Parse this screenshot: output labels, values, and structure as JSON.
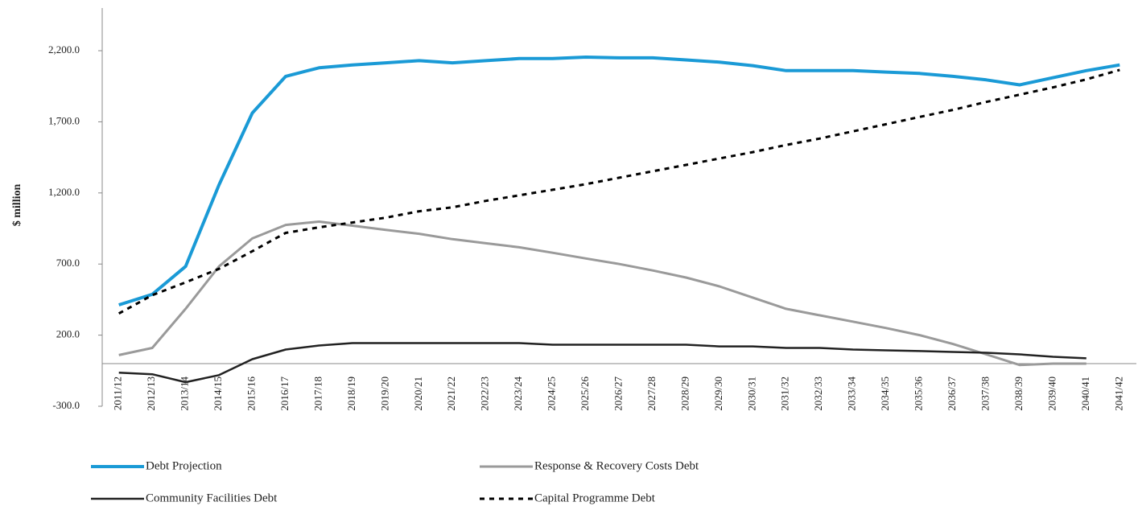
{
  "chart_data": {
    "type": "line",
    "y_label": "$ million",
    "categories": [
      "2011/12",
      "2012/13",
      "2013/14",
      "2014/15",
      "2015/16",
      "2016/17",
      "2017/18",
      "2018/19",
      "2019/20",
      "2020/21",
      "2021/22",
      "2022/23",
      "2023/24",
      "2024/25",
      "2025/26",
      "2026/27",
      "2027/28",
      "2028/29",
      "2029/30",
      "2030/31",
      "2031/32",
      "2032/33",
      "2033/34",
      "2034/35",
      "2035/36",
      "2036/37",
      "2037/38",
      "2038/39",
      "2039/40",
      "2040/41",
      "2041/42"
    ],
    "series": [
      {
        "name": "Debt Projection",
        "color": "#1a9ad6",
        "dash": false,
        "values": [
          413,
          487,
          683,
          1256,
          1762,
          2020,
          2080,
          2100,
          2115,
          2130,
          2115,
          2130,
          2145,
          2145,
          2155,
          2150,
          2150,
          2135,
          2120,
          2095,
          2060,
          2060,
          2060,
          2050,
          2040,
          2020,
          1995,
          1960,
          2010,
          2060,
          2100
        ]
      },
      {
        "name": "Response & Recovery Costs Debt",
        "color": "#9a9a9a",
        "dash": false,
        "values": [
          60,
          110,
          385,
          683,
          880,
          975,
          998,
          970,
          940,
          913,
          875,
          846,
          818,
          779,
          739,
          700,
          655,
          605,
          543,
          464,
          385,
          340,
          295,
          250,
          200,
          138,
          65,
          -10,
          0,
          0,
          null
        ]
      },
      {
        "name": "Community Facilities Debt",
        "color": "#222222",
        "dash": false,
        "values": [
          -64,
          -75,
          -131,
          -81,
          31,
          99,
          127,
          144,
          144,
          144,
          144,
          144,
          144,
          133,
          133,
          133,
          133,
          133,
          121,
          121,
          110,
          110,
          99,
          93,
          88,
          82,
          76,
          65,
          48,
          37,
          null
        ]
      },
      {
        "name": "Capital Programme Debt",
        "color": "#000000",
        "dash": true,
        "values": [
          352,
          481,
          571,
          666,
          790,
          919,
          958,
          992,
          1026,
          1071,
          1099,
          1144,
          1183,
          1222,
          1262,
          1307,
          1352,
          1397,
          1442,
          1487,
          1537,
          1582,
          1633,
          1683,
          1734,
          1784,
          1840,
          1891,
          1942,
          1998,
          2065
        ]
      }
    ],
    "ylim": [
      -300,
      2500
    ],
    "yticks": [
      {
        "value": -300,
        "label": "-300.0"
      },
      {
        "value": 200,
        "label": "200.0"
      },
      {
        "value": 700,
        "label": "700.0"
      },
      {
        "value": 1200,
        "label": "1,200.0"
      },
      {
        "value": 1700,
        "label": "1,700.0"
      },
      {
        "value": 2200,
        "label": "2,200.0"
      }
    ],
    "grid": false,
    "legend": "bottom"
  }
}
